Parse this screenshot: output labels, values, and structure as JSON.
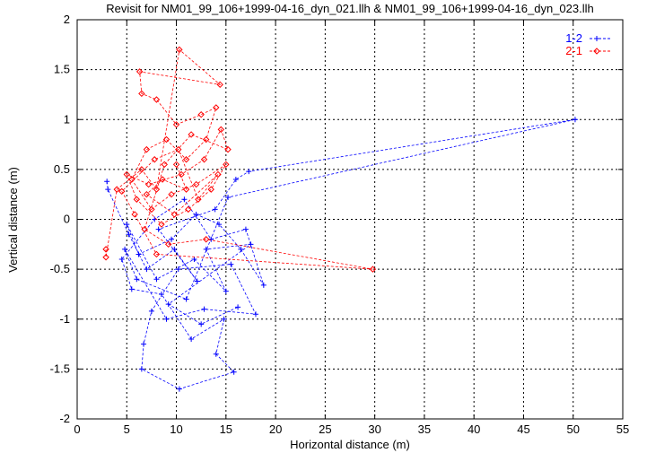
{
  "chart_data": {
    "type": "scatter",
    "title": "Revisit for NM01_99_106+1999-04-16_dyn_021.llh & NM01_99_106+1999-04-16_dyn_023.llh",
    "xlabel": "Horizontal distance (m)",
    "ylabel": "Vertical distance (m)",
    "xlim": [
      0,
      55
    ],
    "ylim": [
      -2,
      2
    ],
    "xticks": [
      0,
      5,
      10,
      15,
      20,
      25,
      30,
      35,
      40,
      45,
      50,
      55
    ],
    "yticks": [
      -2,
      -1.5,
      -1,
      -0.5,
      0,
      0.5,
      1,
      1.5,
      2
    ],
    "grid": true,
    "legend_position": "top-right",
    "series": [
      {
        "name": "1-2",
        "color": "#0000ff",
        "marker": "plus",
        "points": [
          [
            3.0,
            0.38
          ],
          [
            3.1,
            0.3
          ],
          [
            5.2,
            -0.15
          ],
          [
            7.0,
            -0.5
          ],
          [
            9.8,
            -0.3
          ],
          [
            12.1,
            -0.62
          ],
          [
            8.2,
            -0.1
          ],
          [
            13.9,
            0.1
          ],
          [
            16.0,
            0.4
          ],
          [
            17.3,
            0.48
          ],
          [
            50.2,
            1.0
          ],
          [
            15.2,
            0.22
          ],
          [
            11.0,
            -0.8
          ],
          [
            6.0,
            -0.6
          ],
          [
            4.8,
            -0.3
          ],
          [
            9.0,
            -1.0
          ],
          [
            12.8,
            -0.9
          ],
          [
            18.0,
            -0.95
          ],
          [
            15.5,
            -0.45
          ],
          [
            10.2,
            -0.5
          ],
          [
            7.5,
            -0.92
          ],
          [
            6.7,
            -1.25
          ],
          [
            6.5,
            -1.5
          ],
          [
            10.3,
            -1.7
          ],
          [
            15.8,
            -1.53
          ],
          [
            14.0,
            -1.35
          ],
          [
            14.8,
            -1.0
          ],
          [
            11.5,
            -1.2
          ],
          [
            8.5,
            -0.75
          ],
          [
            5.5,
            -0.7
          ],
          [
            4.5,
            -0.4
          ],
          [
            7.8,
            0.0
          ],
          [
            10.8,
            0.2
          ],
          [
            13.5,
            -0.2
          ],
          [
            17.0,
            -0.1
          ],
          [
            18.8,
            -0.66
          ],
          [
            16.5,
            -0.3
          ],
          [
            14.3,
            -0.05
          ],
          [
            12.0,
            0.05
          ],
          [
            9.5,
            -0.2
          ],
          [
            6.2,
            -0.35
          ],
          [
            5.0,
            -0.05
          ],
          [
            8.0,
            -0.6
          ],
          [
            11.8,
            -0.4
          ],
          [
            15.0,
            -0.72
          ],
          [
            13.0,
            -0.3
          ],
          [
            17.5,
            -0.25
          ],
          [
            9.2,
            -0.85
          ],
          [
            12.5,
            -1.05
          ],
          [
            16.2,
            -0.88
          ]
        ]
      },
      {
        "name": "2-1",
        "color": "#ff0000",
        "marker": "diamond",
        "points": [
          [
            2.9,
            -0.3
          ],
          [
            2.9,
            -0.38
          ],
          [
            4.0,
            0.3
          ],
          [
            6.5,
            0.5
          ],
          [
            8.0,
            0.3
          ],
          [
            10.3,
            1.7
          ],
          [
            14.4,
            1.35
          ],
          [
            6.3,
            1.48
          ],
          [
            6.5,
            1.26
          ],
          [
            8.0,
            1.2
          ],
          [
            10.0,
            0.95
          ],
          [
            12.5,
            1.05
          ],
          [
            14.0,
            1.12
          ],
          [
            13.0,
            0.8
          ],
          [
            11.0,
            0.6
          ],
          [
            9.0,
            0.8
          ],
          [
            7.0,
            0.7
          ],
          [
            5.5,
            0.4
          ],
          [
            7.5,
            0.1
          ],
          [
            9.5,
            0.25
          ],
          [
            12.0,
            0.35
          ],
          [
            15.0,
            0.55
          ],
          [
            13.5,
            0.3
          ],
          [
            11.2,
            0.1
          ],
          [
            8.5,
            -0.05
          ],
          [
            6.0,
            0.2
          ],
          [
            5.0,
            0.45
          ],
          [
            7.2,
            0.35
          ],
          [
            10.5,
            0.45
          ],
          [
            12.8,
            0.6
          ],
          [
            14.5,
            0.9
          ],
          [
            15.2,
            0.7
          ],
          [
            11.5,
            0.85
          ],
          [
            8.8,
            0.55
          ],
          [
            6.8,
            -0.1
          ],
          [
            9.2,
            -0.25
          ],
          [
            13.0,
            -0.2
          ],
          [
            29.8,
            -0.5
          ],
          [
            8.0,
            -0.35
          ],
          [
            5.8,
            0.05
          ],
          [
            4.5,
            0.28
          ],
          [
            7.8,
            0.6
          ],
          [
            10.2,
            0.7
          ],
          [
            12.2,
            0.2
          ],
          [
            14.2,
            0.45
          ],
          [
            9.8,
            0.05
          ],
          [
            7.0,
            0.25
          ],
          [
            8.6,
            0.4
          ],
          [
            11.0,
            0.3
          ],
          [
            10.0,
            0.55
          ]
        ]
      }
    ]
  }
}
